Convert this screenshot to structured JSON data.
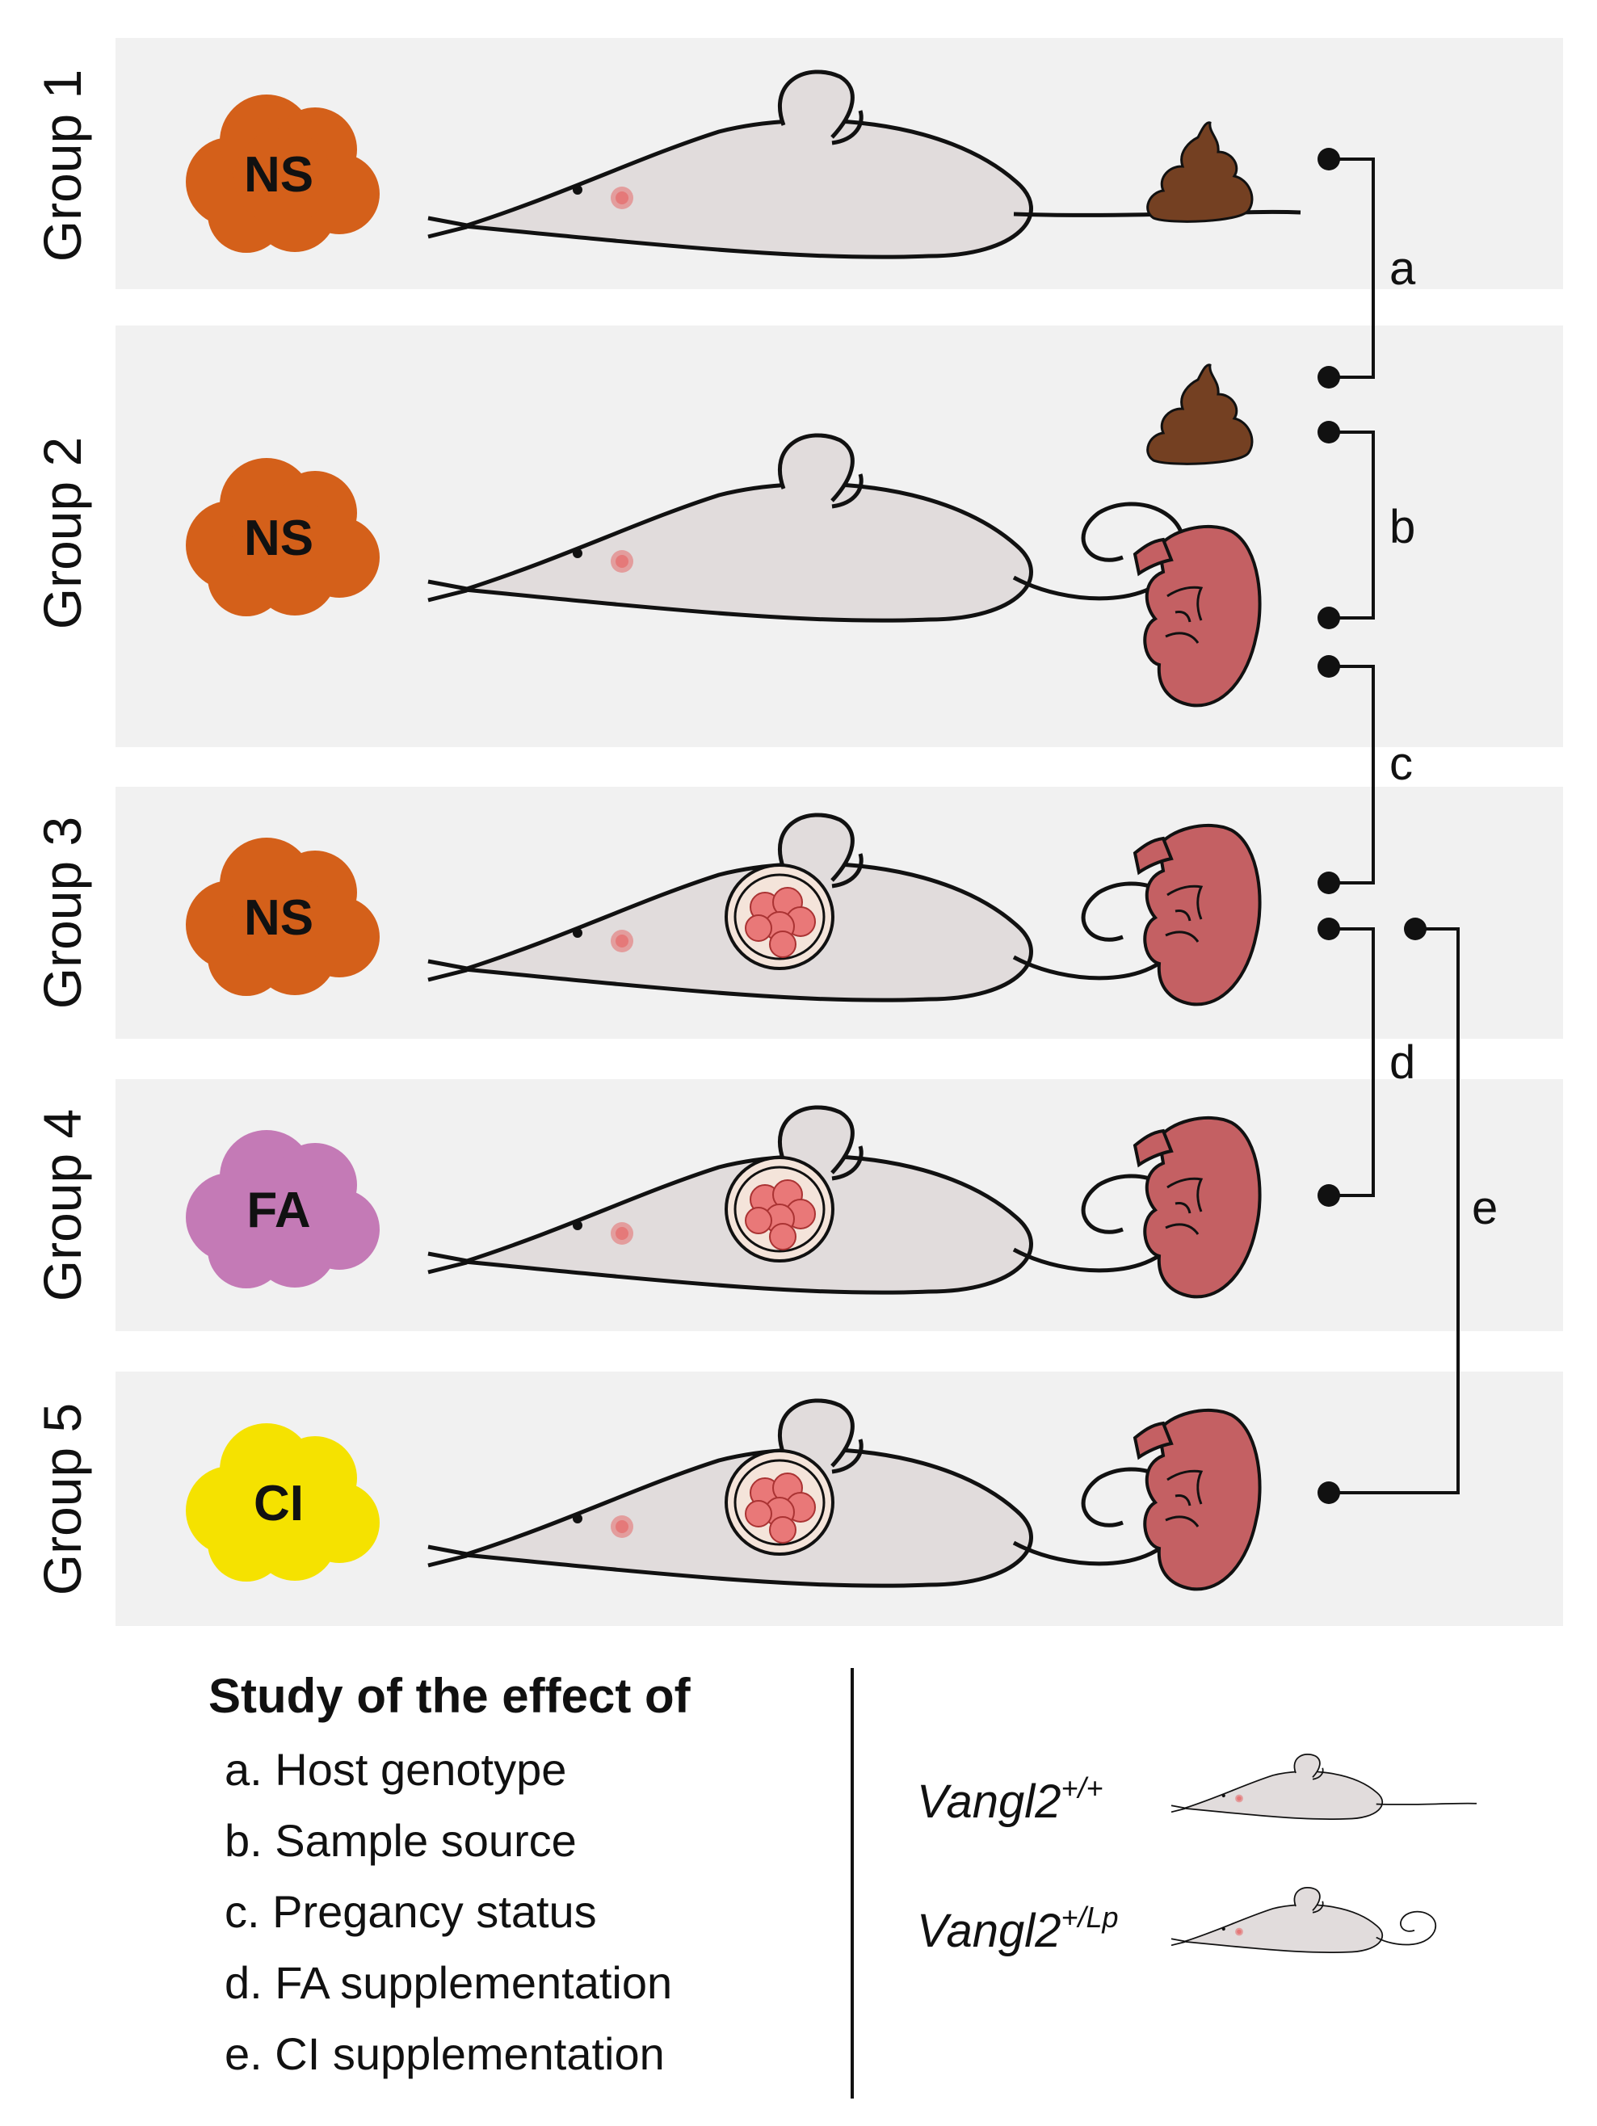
{
  "groups": [
    {
      "label": "Group 1",
      "supplement": "NS",
      "pregnant": false,
      "genotype": "wt",
      "sample": "feces"
    },
    {
      "label": "Group 2",
      "supplement": "NS",
      "pregnant": false,
      "genotype": "lp",
      "samples": [
        "feces",
        "intestine"
      ]
    },
    {
      "label": "Group 3",
      "supplement": "NS",
      "pregnant": true,
      "genotype": "lp",
      "sample": "intestine"
    },
    {
      "label": "Group 4",
      "supplement": "FA",
      "pregnant": true,
      "genotype": "lp",
      "sample": "intestine"
    },
    {
      "label": "Group 5",
      "supplement": "CI",
      "pregnant": true,
      "genotype": "lp",
      "sample": "intestine"
    }
  ],
  "supplement_colors": {
    "NS": "#d4601a",
    "FA": "#c47ab6",
    "CI": "#f5e200"
  },
  "colors": {
    "panel_bg": "#f1f1f1",
    "mouse_body": "#e1dcdc",
    "mouse_nose": "#e56a6a",
    "feces": "#744022",
    "intestine": "#c46063",
    "embryo_outer": "#f4e4da",
    "embryo_cells": "#e97878"
  },
  "brackets": {
    "a": "a",
    "b": "b",
    "c": "c",
    "d": "d",
    "e": "e"
  },
  "legend": {
    "title": "Study of the effect of",
    "items": [
      "a. Host genotype",
      "b. Sample source",
      "c. Pregancy status",
      "d. FA supplementation",
      "e. CI supplementation"
    ],
    "genotype_wt": {
      "name": "Vangl2",
      "sup": "+/+"
    },
    "genotype_lp": {
      "name": "Vangl2",
      "sup": "+/Lp"
    }
  }
}
